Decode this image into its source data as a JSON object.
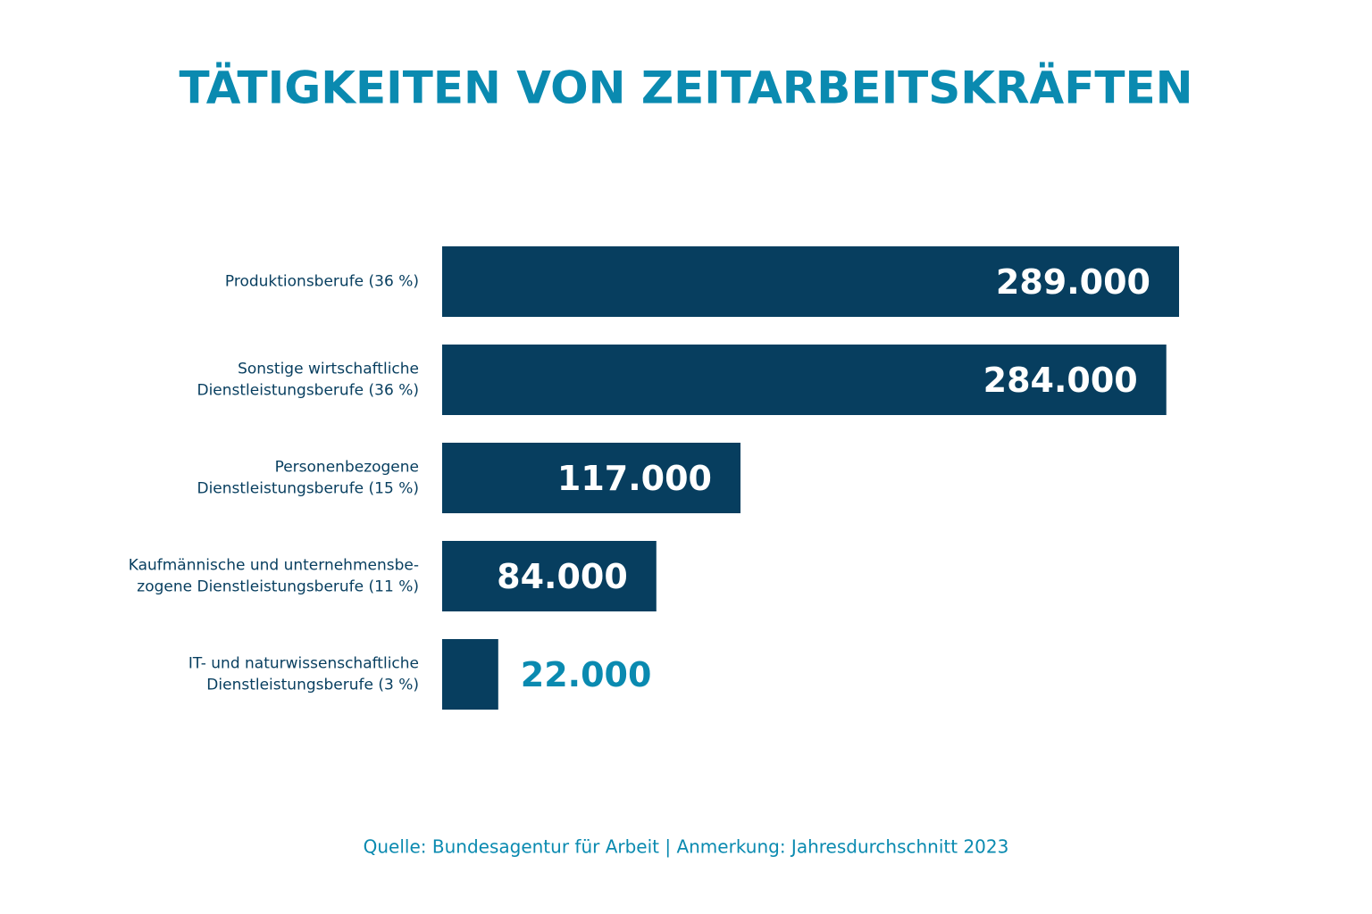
{
  "chart_data": {
    "type": "barh",
    "title": "TÄTIGKEITEN VON ZEITARBEITSKRÄFTEN",
    "categories": [
      [
        "Produktionsberufe (36 %)"
      ],
      [
        "Sonstige wirtschaftliche",
        "Dienstleistungsberufe (36 %)"
      ],
      [
        "Personenbezogene",
        "Dienstleistungsberufe (15 %)"
      ],
      [
        "Kaufmännische und unternehmensbe-",
        "zogene Dienstleistungsberufe (11 %)"
      ],
      [
        "IT- und naturwissenschaftliche",
        "Dienstleistungsberufe (3 %)"
      ]
    ],
    "values": [
      289000,
      284000,
      117000,
      84000,
      22000
    ],
    "value_labels": [
      "289.000",
      "284.000",
      "117.000",
      "84.000",
      "22.000"
    ],
    "color": "#073e5f",
    "label_color_inside": "#ffffff",
    "label_color_outside": "#0a8ab0",
    "note": "Quelle: Bundesagentur für Arbeit | Anmerkung: Jahresdurchschnitt 2023"
  }
}
